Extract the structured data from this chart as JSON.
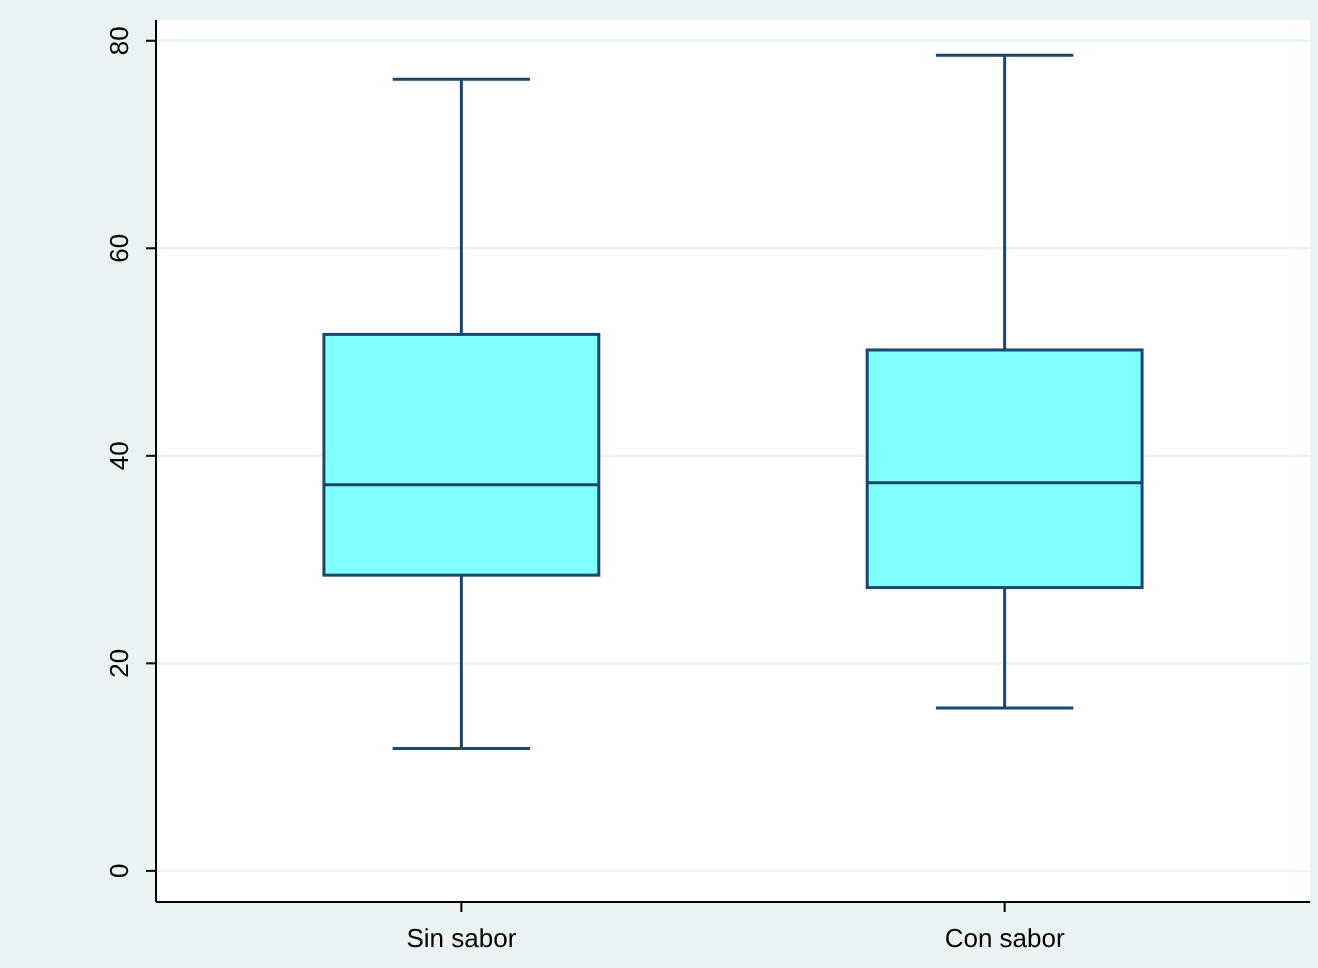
{
  "chart_data": {
    "type": "box",
    "categories": [
      "Sin sabor",
      "Con sabor"
    ],
    "boxes": [
      {
        "low": 11.8,
        "q1": 28.5,
        "median": 37.2,
        "q3": 51.7,
        "high": 76.3
      },
      {
        "low": 15.7,
        "q1": 27.3,
        "median": 37.4,
        "q3": 50.2,
        "high": 78.6
      }
    ],
    "color": "#80ffff",
    "ylim": [
      -3,
      82
    ],
    "yticks": [
      0,
      20,
      40,
      60,
      80
    ],
    "grid": "y"
  }
}
